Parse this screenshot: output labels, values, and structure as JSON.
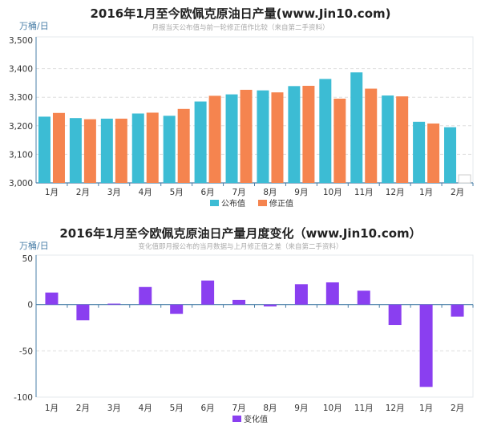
{
  "chart_data": [
    {
      "type": "bar",
      "title": "2016年1月至今欧佩克原油日产量(www.Jin10.com)",
      "subtitle": "月报当天公布值与前一轮修正值作比较（来自第二手资料）",
      "ylabel": "万桶/日",
      "xlabel": "",
      "ylim": [
        3000,
        3500
      ],
      "yticks": [
        3000,
        3100,
        3200,
        3300,
        3400,
        3500
      ],
      "ytick_labels": [
        "3,000",
        "3,100",
        "3,200",
        "3,300",
        "3,400",
        "3,500"
      ],
      "grid": true,
      "legend": "bottom-center",
      "categories": [
        "1月",
        "2月",
        "3月",
        "4月",
        "5月",
        "6月",
        "7月",
        "8月",
        "9月",
        "10月",
        "11月",
        "12月",
        "1月",
        "2月"
      ],
      "series": [
        {
          "name": "公布值",
          "color": "#3cbcd4",
          "values": [
            3232,
            3227,
            3225,
            3243,
            3235,
            3285,
            3310,
            3324,
            3339,
            3364,
            3387,
            3306,
            3214,
            3195
          ]
        },
        {
          "name": "修正值",
          "color": "#f5844f",
          "values": [
            3245,
            3223,
            3225,
            3246,
            3259,
            3305,
            3326,
            3317,
            3340,
            3295,
            3330,
            3303,
            3208,
            null
          ]
        }
      ]
    },
    {
      "type": "bar",
      "title": "2016年1月至今欧佩克原油日产量月度变化（www.Jin10.com）",
      "subtitle": "变化值即月报公布的当月数据与上月修正值之差（来自第二手资料）",
      "ylabel": "万桶/日",
      "xlabel": "",
      "ylim": [
        -100,
        50
      ],
      "yticks": [
        -100,
        -50,
        0,
        50
      ],
      "ytick_labels": [
        "-100",
        "-50",
        "0",
        "50"
      ],
      "grid": true,
      "legend": "bottom-center",
      "categories": [
        "1月",
        "2月",
        "3月",
        "4月",
        "5月",
        "6月",
        "7月",
        "8月",
        "9月",
        "10月",
        "11月",
        "12月",
        "1月",
        "2月"
      ],
      "series": [
        {
          "name": "变化值",
          "color": "#8a3ff0",
          "values": [
            13,
            -17,
            1,
            19,
            -10,
            26,
            5,
            -2,
            22,
            24,
            15,
            -22,
            -89,
            -13
          ]
        }
      ]
    }
  ]
}
